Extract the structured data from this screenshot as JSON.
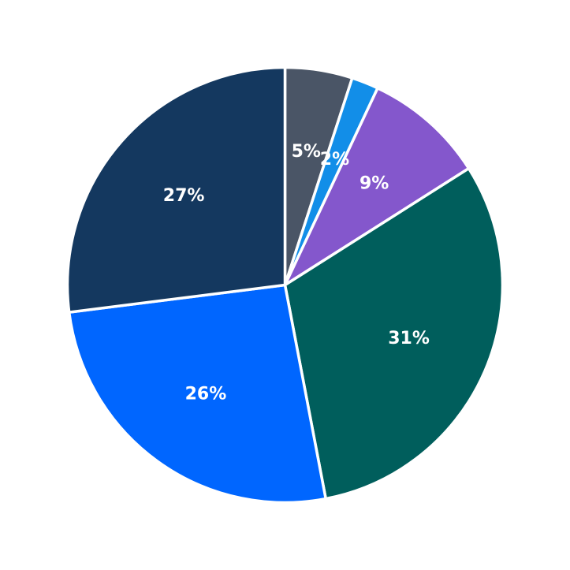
{
  "chart_data": {
    "type": "pie",
    "start_angle": "12 o'clock",
    "direction": "clockwise",
    "slices": [
      {
        "label": "5%",
        "value": 5,
        "color": "#4a5566"
      },
      {
        "label": "2%",
        "value": 2,
        "color": "#128ee8"
      },
      {
        "label": "9%",
        "value": 9,
        "color": "#8457cc"
      },
      {
        "label": "31%",
        "value": 31,
        "color": "#005e5c"
      },
      {
        "label": "26%",
        "value": 26,
        "color": "#0066ff"
      },
      {
        "label": "27%",
        "value": 27,
        "color": "#14385f"
      }
    ],
    "legend": "none"
  }
}
